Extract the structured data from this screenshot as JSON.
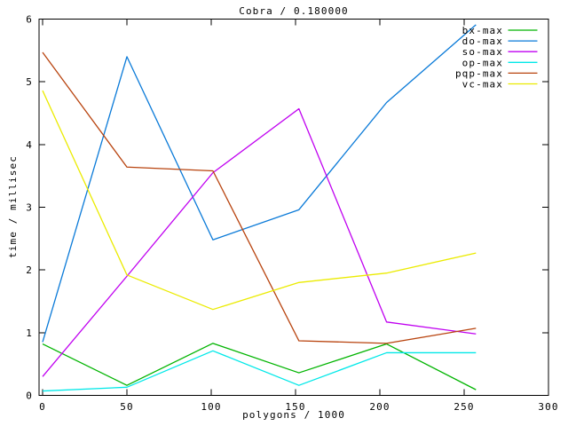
{
  "window": {
    "background_color": "#ffffff",
    "border_color": "#000000"
  },
  "chart_data": {
    "type": "line",
    "title": "Cobra / 0.180000",
    "xlabel": "polygons / 1000",
    "ylabel": "time / millisec",
    "xlim": [
      0,
      300
    ],
    "ylim": [
      0,
      6
    ],
    "xticks": [
      0,
      50,
      100,
      150,
      200,
      250,
      300
    ],
    "yticks": [
      0,
      1,
      2,
      3,
      4,
      5,
      6
    ],
    "grid": false,
    "legend_position": "top-right-inside",
    "x": [
      0,
      50,
      101,
      152,
      204,
      257
    ],
    "series": [
      {
        "name": "bx-max",
        "color": "#00b400",
        "values": [
          0.82,
          0.16,
          0.83,
          0.36,
          0.82,
          0.09
        ]
      },
      {
        "name": "do-max",
        "color": "#0a7ad8",
        "values": [
          0.85,
          5.4,
          2.48,
          2.96,
          4.67,
          5.91
        ]
      },
      {
        "name": "so-max",
        "color": "#c000f0",
        "values": [
          0.3,
          1.9,
          3.55,
          4.57,
          1.17,
          0.98
        ]
      },
      {
        "name": "op-max",
        "color": "#00e8e8",
        "values": [
          0.07,
          0.13,
          0.71,
          0.16,
          0.68,
          0.68
        ]
      },
      {
        "name": "pqp-max",
        "color": "#b8430e",
        "values": [
          5.47,
          3.64,
          3.58,
          0.87,
          0.83,
          1.07
        ]
      },
      {
        "name": "vc-max",
        "color": "#ebeb00",
        "values": [
          4.86,
          1.92,
          1.37,
          1.8,
          1.95,
          2.27
        ]
      }
    ]
  }
}
